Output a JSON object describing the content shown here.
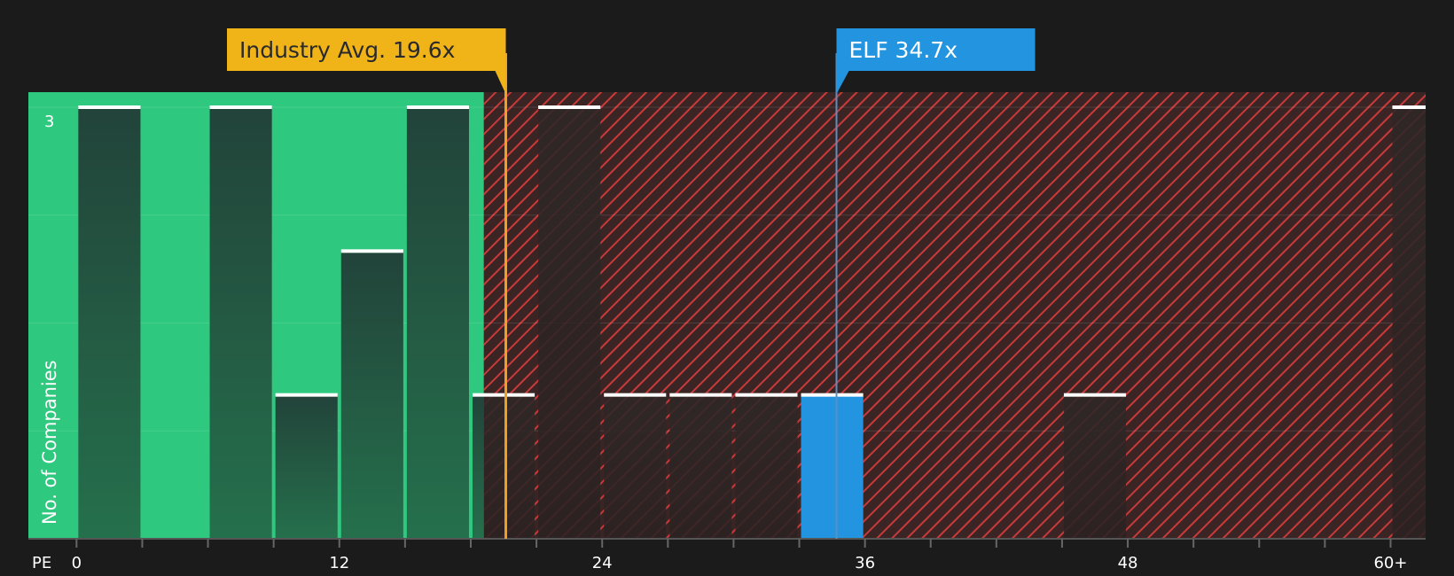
{
  "chart_data": {
    "type": "bar",
    "xlabel": "PE",
    "ylabel": "No. of Companies",
    "x_tick_labels": [
      "0",
      "12",
      "24",
      "36",
      "48",
      "60+"
    ],
    "x_tick_values": [
      0,
      12,
      24,
      36,
      48,
      60
    ],
    "y_tick_labels": [
      "3"
    ],
    "ylim": [
      0,
      3
    ],
    "xlim": [
      -2.2,
      61.6
    ],
    "bin_width": 3,
    "bars": [
      {
        "x": 1.5,
        "value": 3
      },
      {
        "x": 7.5,
        "value": 3
      },
      {
        "x": 10.5,
        "value": 1
      },
      {
        "x": 13.5,
        "value": 2
      },
      {
        "x": 16.5,
        "value": 3
      },
      {
        "x": 19.5,
        "value": 1
      },
      {
        "x": 22.5,
        "value": 3
      },
      {
        "x": 25.5,
        "value": 1
      },
      {
        "x": 28.5,
        "value": 1
      },
      {
        "x": 31.5,
        "value": 1
      },
      {
        "x": 34.5,
        "value": 1,
        "highlight": true
      },
      {
        "x": 46.5,
        "value": 1
      },
      {
        "x": 61.5,
        "value": 3
      }
    ],
    "fair_range_end": 18.6,
    "annotations": {
      "industry": {
        "label": "Industry Avg. 19.6x",
        "value": 19.6
      },
      "company": {
        "label": "ELF 34.7x",
        "value": 34.7
      }
    },
    "colors": {
      "background": "#1b1b1b",
      "fair_zone": "#2ec87e",
      "over_zone": "#3a2424",
      "hatch": "#c93a3a",
      "bar_on_green": "#23473a",
      "bar_on_red": "#2e2626",
      "highlight_bar": "#2394e0",
      "industry_marker": "#f0b419",
      "company_marker": "#2394e0",
      "bar_cap": "#ffffff",
      "grid": "#ffffff"
    }
  }
}
